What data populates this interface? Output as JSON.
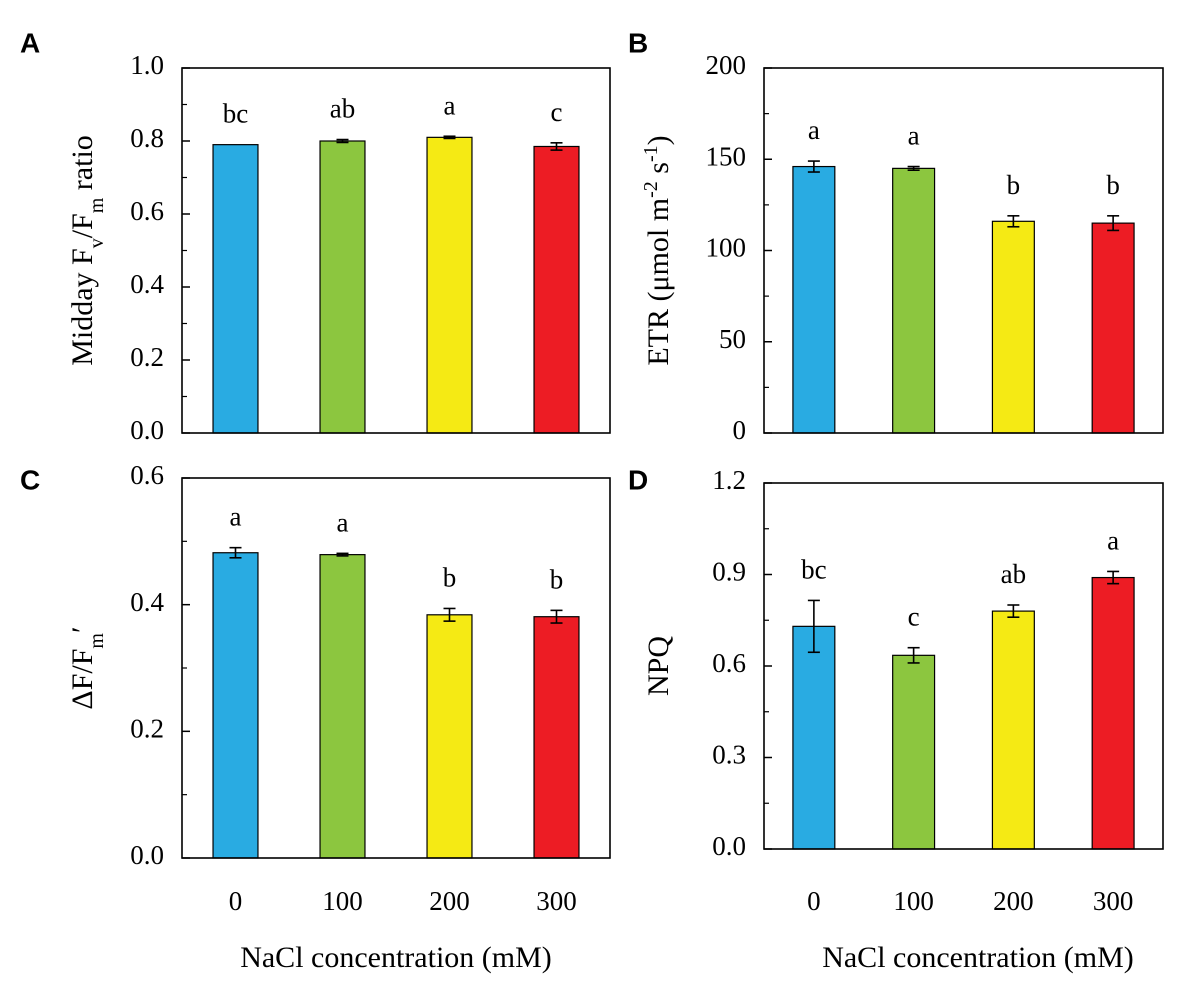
{
  "chart_data": [
    {
      "panel": "A",
      "type": "bar",
      "categories": [
        "0",
        "100",
        "200",
        "300"
      ],
      "values": [
        0.79,
        0.8,
        0.81,
        0.785
      ],
      "errors": [
        0.0,
        0.004,
        0.003,
        0.01
      ],
      "significance": [
        "bc",
        "ab",
        "a",
        "c"
      ],
      "colors": [
        "#29abe2",
        "#8cc63f",
        "#f5ea14",
        "#ed1c24"
      ],
      "ylabel": {
        "main": "Midday F",
        "sub1": "v",
        "mid": "/F",
        "sub2": "m",
        "tail": " ratio"
      },
      "xlabel": "",
      "ylim": [
        0,
        1.0
      ],
      "yticks": [
        "0.0",
        "0.2",
        "0.4",
        "0.6",
        "0.8",
        "1.0"
      ],
      "show_xticklabels": false
    },
    {
      "panel": "B",
      "type": "bar",
      "categories": [
        "0",
        "100",
        "200",
        "300"
      ],
      "values": [
        146,
        145,
        116,
        115
      ],
      "errors": [
        3,
        1,
        3,
        4
      ],
      "significance": [
        "a",
        "a",
        "b",
        "b"
      ],
      "colors": [
        "#29abe2",
        "#8cc63f",
        "#f5ea14",
        "#ed1c24"
      ],
      "ylabel": {
        "main": "ETR (μmol m",
        "sup1": "-2",
        "mid": " s",
        "sup2": "-1",
        "tail": ")"
      },
      "xlabel": "",
      "ylim": [
        0,
        200
      ],
      "yticks": [
        "0",
        "50",
        "100",
        "150",
        "200"
      ],
      "show_xticklabels": false
    },
    {
      "panel": "C",
      "type": "bar",
      "categories": [
        "0",
        "100",
        "200",
        "300"
      ],
      "values": [
        0.482,
        0.479,
        0.384,
        0.381
      ],
      "errors": [
        0.008,
        0.002,
        0.01,
        0.01
      ],
      "significance": [
        "a",
        "a",
        "b",
        "b"
      ],
      "colors": [
        "#29abe2",
        "#8cc63f",
        "#f5ea14",
        "#ed1c24"
      ],
      "ylabel": {
        "main": "ΔF/F",
        "sub1": "m",
        "tail": "′"
      },
      "xlabel": "NaCl concentration  (mM)",
      "ylim": [
        0,
        0.6
      ],
      "yticks": [
        "0.0",
        "0.2",
        "0.4",
        "0.6"
      ],
      "show_xticklabels": true
    },
    {
      "panel": "D",
      "type": "bar",
      "categories": [
        "0",
        "100",
        "200",
        "300"
      ],
      "values": [
        0.73,
        0.635,
        0.78,
        0.89
      ],
      "errors": [
        0.085,
        0.025,
        0.02,
        0.02
      ],
      "significance": [
        "bc",
        "c",
        "ab",
        "a"
      ],
      "colors": [
        "#29abe2",
        "#8cc63f",
        "#f5ea14",
        "#ed1c24"
      ],
      "ylabel": {
        "main": "NPQ"
      },
      "xlabel": "NaCl concentration  (mM)",
      "ylim": [
        0,
        1.2
      ],
      "yticks": [
        "0.0",
        "0.3",
        "0.6",
        "0.9",
        "1.2"
      ],
      "show_xticklabels": true
    }
  ]
}
